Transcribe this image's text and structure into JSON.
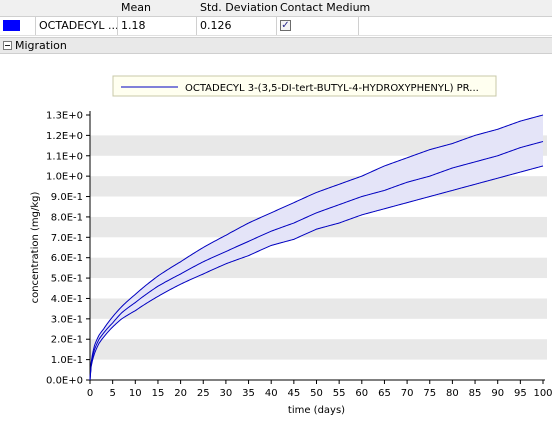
{
  "table": {
    "headers": [
      "Mean",
      "Std. Deviation",
      "Contact Medium"
    ],
    "row": {
      "color": "#0000ff",
      "name": "OCTADECYL ...",
      "mean": "1.18",
      "std": "0.126",
      "contact_medium_checked": true
    }
  },
  "section": {
    "label": "Migration",
    "expander": "collapse-icon"
  },
  "chart_data": {
    "type": "line",
    "legend": [
      "OCTADECYL 3-(3,5-DI-tert-BUTYL-4-HYDROXYPHENYL) PR..."
    ],
    "legend_placement": "top-center",
    "xlabel": "time (days)",
    "ylabel": "concentration (mg/kg)",
    "xlim": [
      0,
      100
    ],
    "ylim": [
      0,
      1.3
    ],
    "x_ticks": [
      "0",
      "5",
      "10",
      "15",
      "20",
      "25",
      "30",
      "35",
      "40",
      "45",
      "50",
      "55",
      "60",
      "65",
      "70",
      "75",
      "80",
      "85",
      "90",
      "95",
      "100"
    ],
    "y_ticks": [
      "0.0E+0",
      "1.0E-1",
      "2.0E-1",
      "3.0E-1",
      "4.0E-1",
      "5.0E-1",
      "6.0E-1",
      "7.0E-1",
      "8.0E-1",
      "9.0E-1",
      "1.0E+0",
      "1.1E+0",
      "1.2E+0",
      "1.3E+0"
    ],
    "grid": "alternating horizontal bands",
    "series_color": "#0000c0",
    "band_color": "#e4e4f8",
    "x": [
      0,
      1,
      2,
      3,
      5,
      7,
      10,
      15,
      20,
      25,
      30,
      35,
      40,
      45,
      50,
      55,
      60,
      65,
      70,
      75,
      80,
      85,
      90,
      95,
      100
    ],
    "series": [
      {
        "name": "upper",
        "values": [
          0.0,
          0.17,
          0.22,
          0.25,
          0.31,
          0.36,
          0.42,
          0.51,
          0.58,
          0.65,
          0.71,
          0.77,
          0.82,
          0.87,
          0.92,
          0.96,
          1.0,
          1.05,
          1.09,
          1.13,
          1.16,
          1.2,
          1.23,
          1.27,
          1.3
        ]
      },
      {
        "name": "mean",
        "values": [
          0.0,
          0.15,
          0.2,
          0.23,
          0.28,
          0.33,
          0.38,
          0.46,
          0.52,
          0.58,
          0.63,
          0.68,
          0.73,
          0.77,
          0.82,
          0.86,
          0.9,
          0.93,
          0.97,
          1.0,
          1.04,
          1.07,
          1.1,
          1.14,
          1.17
        ]
      },
      {
        "name": "lower",
        "values": [
          0.0,
          0.13,
          0.18,
          0.21,
          0.26,
          0.3,
          0.34,
          0.41,
          0.47,
          0.52,
          0.57,
          0.61,
          0.66,
          0.69,
          0.74,
          0.77,
          0.81,
          0.84,
          0.87,
          0.9,
          0.93,
          0.96,
          0.99,
          1.02,
          1.05
        ]
      }
    ]
  }
}
